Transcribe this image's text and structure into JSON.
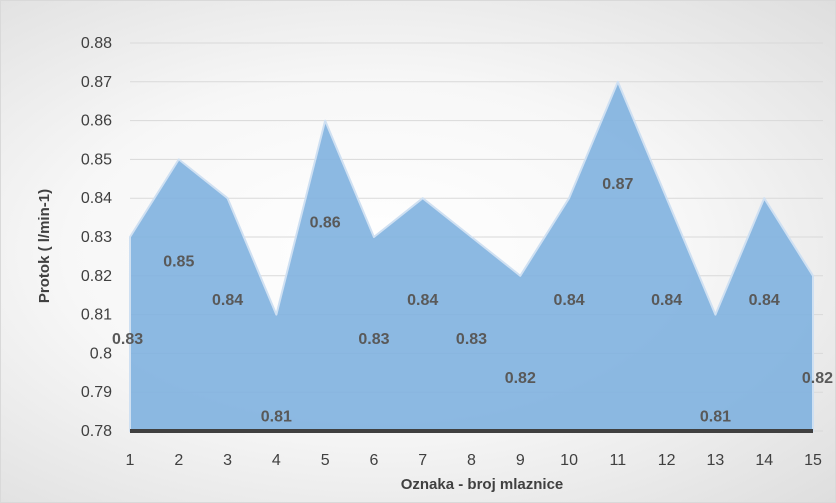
{
  "chart_data": {
    "type": "area",
    "categories": [
      "1",
      "2",
      "3",
      "4",
      "5",
      "6",
      "7",
      "8",
      "9",
      "10",
      "11",
      "12",
      "13",
      "14",
      "15"
    ],
    "series": [
      {
        "values": [
          0.83,
          0.85,
          0.84,
          0.81,
          0.86,
          0.83,
          0.84,
          0.83,
          0.82,
          0.84,
          0.87,
          0.84,
          0.81,
          0.84,
          0.82
        ]
      }
    ],
    "data_labels": [
      "0.83",
      "0.85",
      "0.84",
      "0.81",
      "0.86",
      "0.83",
      "0.84",
      "0.83",
      "0.82",
      "0.84",
      "0.87",
      "0.84",
      "0.81",
      "0.84",
      "0.82"
    ],
    "y_ticks": [
      "0.78",
      "0.79",
      "0.8",
      "0.81",
      "0.82",
      "0.83",
      "0.84",
      "0.85",
      "0.86",
      "0.87",
      "0.88"
    ],
    "xlabel": "Oznaka - broj mlaznice",
    "ylabel": "Protok ( l/min-1)",
    "ylim": [
      0.78,
      0.88
    ],
    "grid": true,
    "legend": "none",
    "colors": {
      "area_fill": "#7fb1df",
      "area_stroke": "#cfe0f2",
      "axis_line": "#404040",
      "grid_line": "#d9d9d9",
      "text": "#404040",
      "data_label": "#595959"
    }
  }
}
